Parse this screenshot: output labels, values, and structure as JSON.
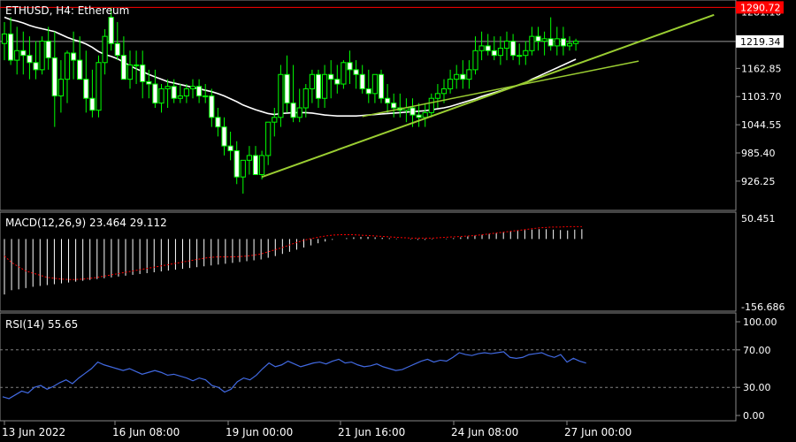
{
  "chart_data": [
    {
      "type": "candlestick",
      "title": "ETHUSD, H4:  Ethereum",
      "price_tags": {
        "high_line": "1290.72",
        "current": "1219.34"
      },
      "high_line_value": 1290.72,
      "current_value": 1219.34,
      "ylim": [
        876,
        1297
      ],
      "y_ticks": [
        "1281.10",
        "1162.85",
        "1103.70",
        "1044.55",
        "985.40",
        "926.25"
      ],
      "y_tick_values": [
        1281.1,
        1162.85,
        1103.7,
        1044.55,
        985.4,
        926.25
      ],
      "x_labels": [
        "13 Jun 2022",
        "16 Jun 08:00",
        "19 Jun 00:00",
        "21 Jun 16:00",
        "24 Jun 08:00",
        "27 Jun 00:00"
      ],
      "candles": {
        "open": [
          1215,
          1235,
          1180,
          1200,
          1190,
          1175,
          1160,
          1220,
          1185,
          1105,
          1140,
          1195,
          1180,
          1140,
          1100,
          1075,
          1175,
          1270,
          1215,
          1190,
          1140,
          1170,
          1170,
          1135,
          1130,
          1090,
          1120,
          1125,
          1100,
          1105,
          1120,
          1125,
          1105,
          1105,
          1060,
          1040,
          1000,
          990,
          935,
          970,
          980,
          940,
          980,
          1050,
          1060,
          1150,
          1090,
          1060,
          1080,
          1120,
          1150,
          1100,
          1150,
          1140,
          1130,
          1175,
          1160,
          1150,
          1120,
          1110,
          1150,
          1100,
          1090,
          1080,
          1075,
          1080,
          1065,
          1060,
          1070,
          1100,
          1110,
          1120,
          1140,
          1150,
          1140,
          1160,
          1200,
          1210,
          1200,
          1190,
          1205,
          1220,
          1190,
          1190,
          1200,
          1230,
          1220,
          1225,
          1210,
          1225,
          1210,
          1215
        ],
        "high": [
          1260,
          1270,
          1250,
          1240,
          1230,
          1220,
          1230,
          1250,
          1240,
          1180,
          1200,
          1240,
          1230,
          1200,
          1160,
          1190,
          1245,
          1290,
          1260,
          1230,
          1200,
          1200,
          1200,
          1160,
          1160,
          1130,
          1140,
          1140,
          1130,
          1130,
          1140,
          1140,
          1130,
          1120,
          1080,
          1060,
          1030,
          1010,
          960,
          1000,
          1000,
          990,
          1010,
          1080,
          1170,
          1190,
          1170,
          1120,
          1130,
          1160,
          1160,
          1170,
          1180,
          1170,
          1180,
          1200,
          1180,
          1170,
          1160,
          1150,
          1160,
          1130,
          1110,
          1110,
          1100,
          1100,
          1090,
          1090,
          1110,
          1130,
          1140,
          1160,
          1170,
          1180,
          1180,
          1230,
          1240,
          1235,
          1230,
          1230,
          1240,
          1235,
          1215,
          1220,
          1250,
          1250,
          1240,
          1270,
          1250,
          1250,
          1230,
          1225
        ],
        "low": [
          1180,
          1170,
          1150,
          1150,
          1140,
          1140,
          1150,
          1160,
          1040,
          1070,
          1090,
          1140,
          1140,
          1070,
          1060,
          1060,
          1150,
          1200,
          1180,
          1140,
          1120,
          1130,
          1100,
          1100,
          1080,
          1070,
          1080,
          1090,
          1090,
          1090,
          1100,
          1090,
          1090,
          1040,
          1020,
          980,
          970,
          920,
          900,
          940,
          940,
          930,
          960,
          1020,
          1040,
          1070,
          1050,
          1050,
          1060,
          1090,
          1080,
          1080,
          1100,
          1110,
          1120,
          1130,
          1120,
          1110,
          1090,
          1090,
          1090,
          1070,
          1060,
          1060,
          1050,
          1040,
          1040,
          1040,
          1060,
          1080,
          1090,
          1110,
          1120,
          1120,
          1120,
          1150,
          1180,
          1190,
          1180,
          1170,
          1180,
          1180,
          1170,
          1170,
          1190,
          1200,
          1190,
          1200,
          1190,
          1190,
          1200,
          1200
        ],
        "close": [
          1235,
          1180,
          1200,
          1190,
          1175,
          1160,
          1220,
          1185,
          1105,
          1140,
          1195,
          1180,
          1140,
          1100,
          1075,
          1175,
          1230,
          1215,
          1190,
          1140,
          1170,
          1170,
          1135,
          1130,
          1090,
          1120,
          1125,
          1100,
          1105,
          1120,
          1125,
          1105,
          1105,
          1060,
          1040,
          1000,
          990,
          935,
          970,
          980,
          940,
          980,
          1050,
          1060,
          1150,
          1090,
          1060,
          1080,
          1120,
          1150,
          1100,
          1150,
          1140,
          1130,
          1175,
          1160,
          1150,
          1120,
          1110,
          1150,
          1100,
          1090,
          1080,
          1075,
          1080,
          1065,
          1060,
          1070,
          1100,
          1110,
          1120,
          1140,
          1150,
          1140,
          1160,
          1200,
          1210,
          1200,
          1190,
          1205,
          1220,
          1190,
          1190,
          1200,
          1230,
          1220,
          1225,
          1210,
          1225,
          1210,
          1215,
          1220
        ]
      },
      "moving_average": [
        1270,
        1265,
        1262,
        1258,
        1253,
        1249,
        1246,
        1243,
        1240,
        1234,
        1228,
        1223,
        1219,
        1214,
        1207,
        1198,
        1192,
        1188,
        1183,
        1176,
        1168,
        1162,
        1156,
        1150,
        1145,
        1140,
        1135,
        1132,
        1129,
        1126,
        1123,
        1120,
        1117,
        1114,
        1110,
        1105,
        1099,
        1093,
        1086,
        1081,
        1076,
        1072,
        1068,
        1066,
        1068,
        1069,
        1070,
        1070,
        1070,
        1069,
        1067,
        1065,
        1064,
        1063,
        1063,
        1063,
        1063,
        1064,
        1065,
        1066,
        1067,
        1068,
        1069,
        1070,
        1071,
        1072,
        1073,
        1074,
        1076,
        1078,
        1080,
        1083,
        1087,
        1091,
        1095,
        1099,
        1104,
        1108,
        1112,
        1116,
        1120,
        1124,
        1128,
        1133,
        1140,
        1146,
        1152,
        1158,
        1164,
        1170,
        1176,
        1182
      ],
      "trendline": {
        "x0_index": 41,
        "y0": 935,
        "x1_index": 113,
        "y1": 1275
      },
      "trendline2": {
        "x0_index": 57,
        "y0": 1062,
        "x1_index": 101,
        "y1": 1178
      },
      "colors": {
        "bull": "#000000",
        "bear": "#ffffff",
        "wick": "#00ff00",
        "ma": "#ffffff",
        "trend": "#9acd32",
        "high_line": "#ff0000"
      }
    },
    {
      "type": "histogram",
      "title": "MACD(12,26,9) 23.464 29.112",
      "ylim": [
        -156.686,
        50.451
      ],
      "y_ticks": [
        "50.451",
        "-156.686"
      ],
      "histogram": [
        -130,
        -120,
        -118,
        -115,
        -112,
        -110,
        -108,
        -106,
        -104,
        -102,
        -100,
        -98,
        -96,
        -94,
        -92,
        -90,
        -88,
        -86,
        -84,
        -82,
        -80,
        -78,
        -76,
        -74,
        -72,
        -70,
        -68,
        -66,
        -64,
        -62,
        -60,
        -58,
        -56,
        -54,
        -52,
        -50,
        -48,
        -44,
        -40,
        -35,
        -30,
        -25,
        -20,
        -15,
        -10,
        -6,
        -2,
        0,
        2,
        4,
        5,
        5,
        4,
        3,
        2,
        1,
        0,
        -1,
        -2,
        -2,
        -1,
        0,
        1,
        2,
        4,
        6,
        8,
        10,
        12,
        14,
        16,
        18,
        20,
        21,
        22,
        23,
        23,
        22,
        21,
        20,
        22,
        23
      ],
      "signal": [
        -40,
        -55,
        -65,
        -75,
        -80,
        -85,
        -90,
        -92,
        -94,
        -95,
        -95,
        -94,
        -92,
        -90,
        -87,
        -84,
        -81,
        -78,
        -75,
        -72,
        -69,
        -66,
        -63,
        -60,
        -57,
        -54,
        -51,
        -48,
        -45,
        -43,
        -42,
        -42,
        -42,
        -41,
        -40,
        -38,
        -35,
        -30,
        -25,
        -20,
        -14,
        -8,
        -3,
        1,
        4,
        7,
        9,
        10,
        10,
        10,
        9,
        8,
        7,
        6,
        5,
        4,
        3,
        2,
        2,
        2,
        2,
        3,
        4,
        5,
        6,
        7,
        8,
        10,
        12,
        14,
        16,
        18,
        20,
        22,
        24,
        26,
        27,
        28,
        28,
        29,
        29,
        29
      ],
      "colors": {
        "histogram": "#ffffff",
        "signal": "#ff0000"
      }
    },
    {
      "type": "line",
      "title": "RSI(14) 55.65",
      "ylim": [
        0,
        100
      ],
      "y_ticks": [
        "100.00",
        "70.00",
        "30.00",
        "0.00"
      ],
      "y_tick_values": [
        100,
        70,
        30,
        0
      ],
      "values": [
        20,
        18,
        22,
        26,
        24,
        30,
        32,
        28,
        31,
        35,
        38,
        34,
        40,
        45,
        50,
        57,
        54,
        52,
        50,
        48,
        50,
        47,
        44,
        46,
        48,
        46,
        43,
        44,
        42,
        40,
        37,
        40,
        38,
        32,
        30,
        25,
        28,
        36,
        40,
        38,
        43,
        50,
        56,
        52,
        54,
        58,
        55,
        52,
        54,
        56,
        57,
        55,
        58,
        60,
        56,
        57,
        54,
        52,
        53,
        55,
        52,
        50,
        48,
        49,
        52,
        55,
        58,
        60,
        57,
        59,
        58,
        62,
        67,
        65,
        64,
        66,
        67,
        66,
        67,
        68,
        62,
        61,
        62,
        65,
        66,
        67,
        64,
        62,
        65,
        57,
        61,
        58,
        56
      ],
      "colors": {
        "line": "#4169e1",
        "level": "#808080"
      }
    }
  ]
}
